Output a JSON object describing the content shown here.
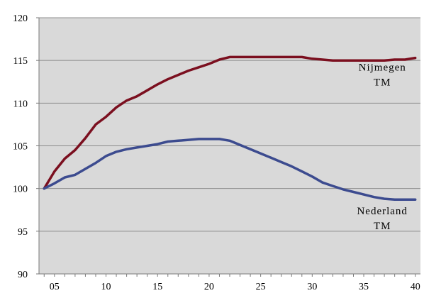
{
  "chart_data": {
    "type": "line",
    "title": "",
    "xlabel": "",
    "ylabel": "",
    "x": [
      4,
      5,
      6,
      7,
      8,
      9,
      10,
      11,
      12,
      13,
      14,
      15,
      16,
      17,
      18,
      19,
      20,
      21,
      22,
      23,
      24,
      25,
      26,
      27,
      28,
      29,
      30,
      31,
      32,
      33,
      34,
      35,
      36,
      37,
      38,
      39,
      40
    ],
    "x_tick_values": [
      5,
      10,
      15,
      20,
      25,
      30,
      35,
      40
    ],
    "x_tick_labels": [
      "05",
      "10",
      "15",
      "20",
      "25",
      "30",
      "35",
      "40"
    ],
    "xlim": [
      3.5,
      40.5
    ],
    "ylim": [
      90,
      120
    ],
    "y_tick_values": [
      90,
      95,
      100,
      105,
      110,
      115,
      120
    ],
    "y_tick_labels": [
      "90",
      "95",
      "100",
      "105",
      "110",
      "115",
      "120"
    ],
    "grid": "horizontal",
    "plot_background": "#d9d9d9",
    "series": [
      {
        "name": "Nijmegen TM",
        "label_lines": [
          "Nijmegen",
          "TM"
        ],
        "color": "#7b0f1f",
        "values": [
          100.0,
          102.0,
          103.5,
          104.5,
          105.9,
          107.5,
          108.4,
          109.5,
          110.3,
          110.8,
          111.5,
          112.2,
          112.8,
          113.3,
          113.8,
          114.2,
          114.6,
          115.1,
          115.4,
          115.4,
          115.4,
          115.4,
          115.4,
          115.4,
          115.4,
          115.4,
          115.2,
          115.1,
          115.0,
          115.0,
          115.0,
          115.0,
          115.0,
          115.0,
          115.1,
          115.1,
          115.3
        ]
      },
      {
        "name": "Nederland TM",
        "label_lines": [
          "Nederland",
          "TM"
        ],
        "color": "#3c4b8f",
        "values": [
          100.0,
          100.6,
          101.3,
          101.6,
          102.3,
          103.0,
          103.8,
          104.3,
          104.6,
          104.8,
          105.0,
          105.2,
          105.5,
          105.6,
          105.7,
          105.8,
          105.8,
          105.8,
          105.6,
          105.1,
          104.6,
          104.1,
          103.6,
          103.1,
          102.6,
          102.0,
          101.4,
          100.7,
          100.3,
          99.9,
          99.6,
          99.3,
          99.0,
          98.8,
          98.7,
          98.7,
          98.7
        ]
      }
    ]
  }
}
